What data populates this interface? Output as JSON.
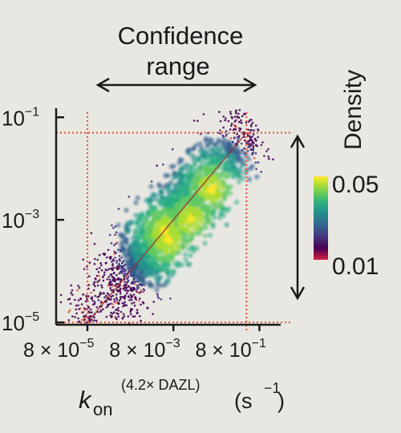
{
  "chart_data": {
    "type": "scatter",
    "title": "",
    "annotations": {
      "confidence_range_line1": "Confidence",
      "confidence_range_line2": "range"
    },
    "xlabel": {
      "symbol": "k",
      "subscript": "on",
      "superscript": "(4.2× DAZL)",
      "unit": "(s",
      "unit_exp": "−1",
      "unit_close": ")"
    },
    "x_scale": "log",
    "y_scale": "log",
    "x_ticks": [
      {
        "value": 8e-05,
        "mantissa": "8 × 10",
        "exp": "−5"
      },
      {
        "value": 0.008,
        "mantissa": "8 × 10",
        "exp": "−3"
      },
      {
        "value": 0.8,
        "mantissa": "8 × 10",
        "exp": "−1"
      }
    ],
    "y_ticks": [
      {
        "value": 0.1,
        "mantissa": "10",
        "exp": "−1"
      },
      {
        "value": 0.001,
        "mantissa": "10",
        "exp": "−3"
      },
      {
        "value": 1e-05,
        "mantissa": "10",
        "exp": "−5"
      }
    ],
    "xlim": [
      1.5e-05,
      2.5
    ],
    "ylim": [
      9e-06,
      0.15
    ],
    "confidence_bounds": {
      "x": [
        8e-05,
        0.4
      ],
      "y": [
        1e-05,
        0.05
      ]
    },
    "trend_line": {
      "x": [
        8e-05,
        0.4
      ],
      "y": [
        1e-05,
        0.05
      ]
    },
    "density_points": [
      {
        "x": 0.006,
        "y": 0.0004
      },
      {
        "x": 0.02,
        "y": 0.001
      },
      {
        "x": 0.005,
        "y": 0.0006
      },
      {
        "x": 0.06,
        "y": 0.004
      }
    ],
    "colorbar": {
      "label": "Density",
      "max_label": "0.05",
      "min_label": "0.01",
      "colors": [
        "#fde725",
        "#8fd744",
        "#35b779",
        "#21918c",
        "#31688e",
        "#443983",
        "#440154",
        "#d62040"
      ]
    },
    "colors": {
      "guides": "#e8583a",
      "trend": "#9a3030",
      "axis": "#1a1a1a"
    }
  }
}
